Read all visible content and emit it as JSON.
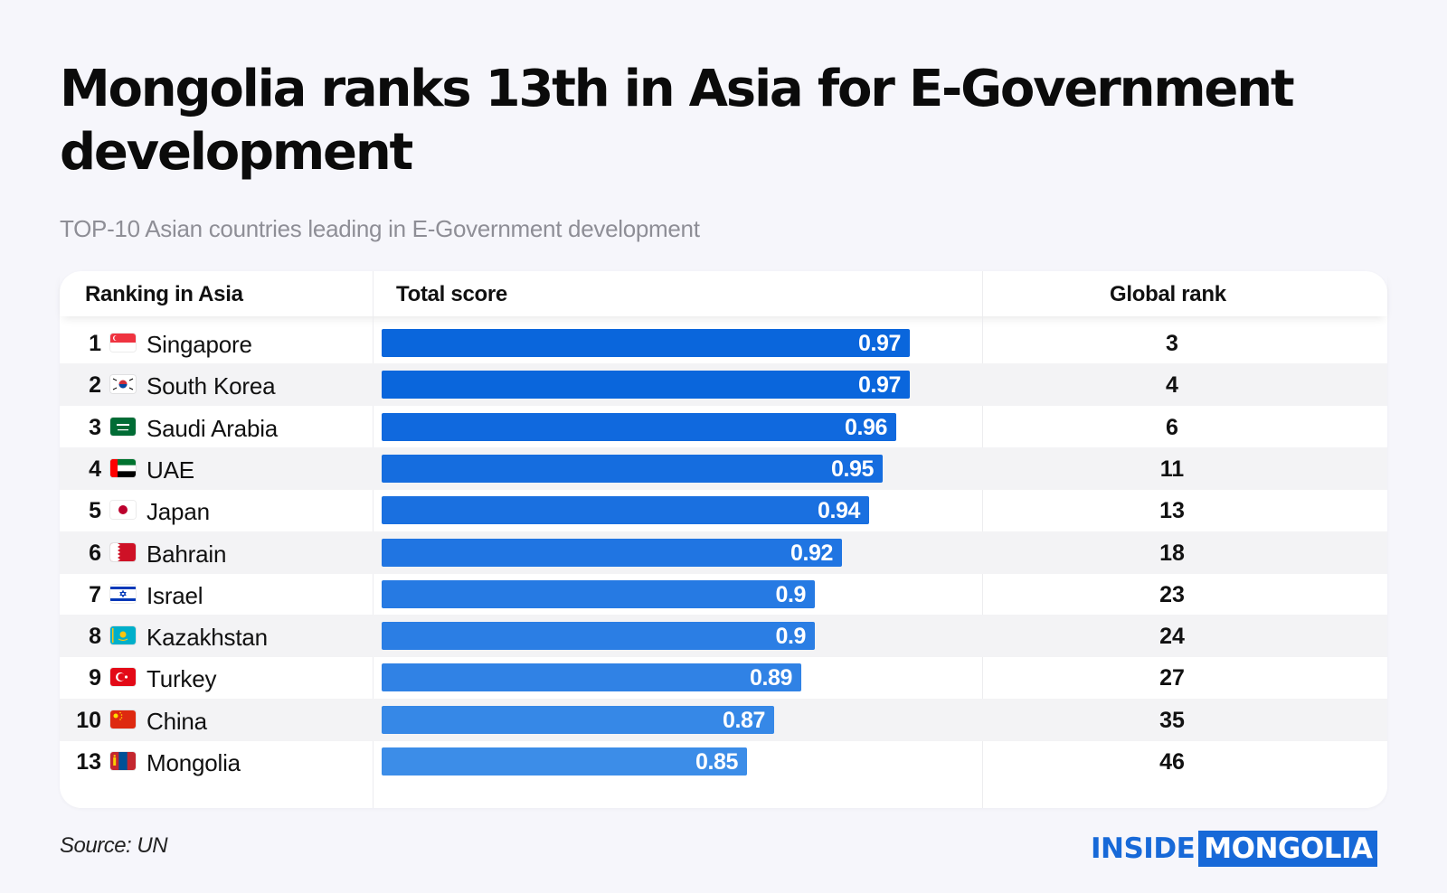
{
  "title": "Mongolia ranks 13th in Asia for E-Government development",
  "subtitle": "TOP-10 Asian countries leading in E-Government development",
  "table": {
    "headers": {
      "rank": "Ranking in Asia",
      "score": "Total score",
      "global": "Global rank"
    }
  },
  "chart_data": {
    "type": "bar",
    "orientation": "horizontal",
    "title": "Mongolia ranks 13th in Asia for E-Government development",
    "subtitle": "TOP-10 Asian countries leading in E-Government development",
    "categories": [
      "Singapore",
      "South Korea",
      "Saudi Arabia",
      "UAE",
      "Japan",
      "Bahrain",
      "Israel",
      "Kazakhstan",
      "Turkey",
      "China",
      "Mongolia"
    ],
    "series": [
      {
        "name": "Total score",
        "values": [
          0.97,
          0.97,
          0.96,
          0.95,
          0.94,
          0.92,
          0.9,
          0.9,
          0.89,
          0.87,
          0.85
        ]
      }
    ],
    "asia_rank": [
      "1",
      "2",
      "3",
      "4",
      "5",
      "6",
      "7",
      "8",
      "9",
      "10",
      "13"
    ],
    "global_rank": [
      "3",
      "4",
      "6",
      "11",
      "13",
      "18",
      "23",
      "24",
      "27",
      "35",
      "46"
    ],
    "flags": [
      "singapore-flag-icon",
      "south-korea-flag-icon",
      "saudi-arabia-flag-icon",
      "uae-flag-icon",
      "japan-flag-icon",
      "bahrain-flag-icon",
      "israel-flag-icon",
      "kazakhstan-flag-icon",
      "turkey-flag-icon",
      "china-flag-icon",
      "mongolia-flag-icon"
    ],
    "bar_colors": [
      "#0a66dc",
      "#0a66dc",
      "#1069de",
      "#156ddf",
      "#1a70e0",
      "#2075e2",
      "#267ae3",
      "#2b7ee4",
      "#3082e5",
      "#3688e7",
      "#3c8de8"
    ]
  },
  "source": "Source: UN",
  "logo": {
    "part1": "INSIDE",
    "part2": "MONGOLIA"
  },
  "colors": {
    "brand": "#1769d8",
    "background": "#f6f6fb"
  }
}
